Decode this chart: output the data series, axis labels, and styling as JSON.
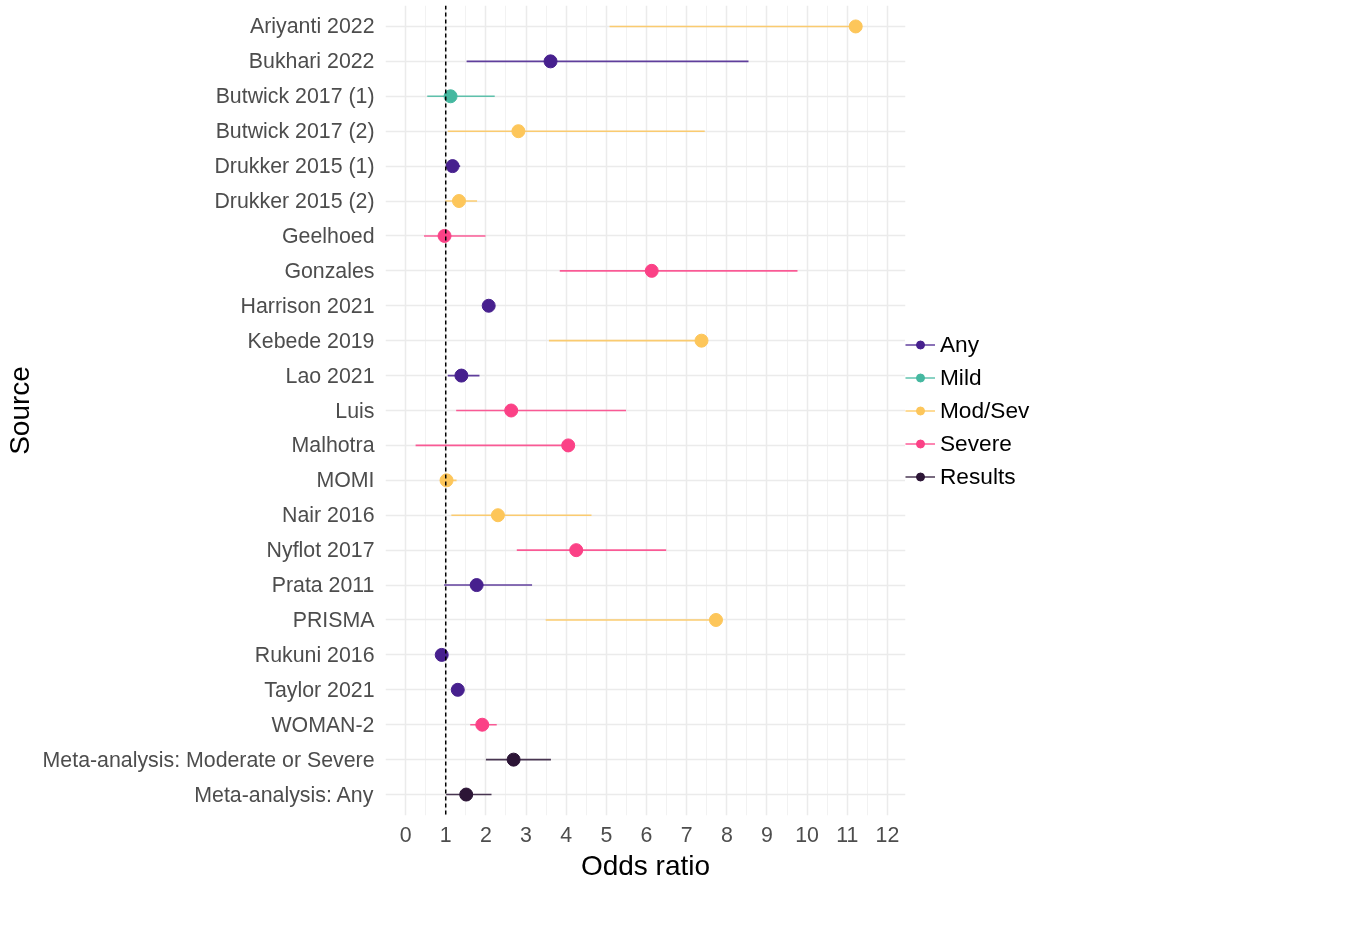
{
  "chart_data": {
    "type": "scatter",
    "orientation": "horizontal",
    "xlabel": "Odds ratio",
    "ylabel": "Source",
    "categories": [
      "Ariyanti 2022",
      "Bukhari 2022",
      "Butwick 2017 (1)",
      "Butwick 2017 (2)",
      "Drukker 2015 (1)",
      "Drukker 2015 (2)",
      "Geelhoed",
      "Gonzales",
      "Harrison 2021",
      "Kebede 2019",
      "Lao 2021",
      "Luis",
      "Malhotra",
      "MOMI",
      "Nair 2016",
      "Nyflot 2017",
      "Prata 2011",
      "PRISMA",
      "Rukuni 2016",
      "Taylor 2021",
      "WOMAN-2",
      "Meta-analysis: Moderate or Severe",
      "Meta-analysis: Any"
    ],
    "series": [
      {
        "name": "Any",
        "color": "#47208e",
        "values": [
          null,
          3.61,
          null,
          null,
          1.17,
          null,
          null,
          null,
          2.07,
          null,
          1.39,
          null,
          null,
          null,
          null,
          null,
          1.77,
          null,
          0.9,
          1.3,
          null,
          null,
          null
        ],
        "errors": [
          null,
          [
            1.52,
            8.54
          ],
          null,
          null,
          [
            1.05,
            1.36
          ],
          null,
          null,
          null,
          null,
          null,
          [
            1.05,
            1.84
          ],
          null,
          null,
          null,
          null,
          null,
          [
            0.96,
            3.15
          ],
          null,
          null,
          null,
          null,
          null,
          null
        ]
      },
      {
        "name": "Mild",
        "color": "#45b8a0",
        "values": [
          null,
          null,
          1.12,
          null,
          null,
          null,
          null,
          null,
          null,
          null,
          null,
          null,
          null,
          null,
          null,
          null,
          null,
          null,
          null,
          null,
          null,
          null,
          null
        ],
        "errors": [
          null,
          null,
          [
            0.54,
            2.22
          ],
          null,
          null,
          null,
          null,
          null,
          null,
          null,
          null,
          null,
          null,
          null,
          null,
          null,
          null,
          null,
          null,
          null,
          null,
          null,
          null
        ]
      },
      {
        "name": "Mod/Sev",
        "color": "#fdc65a",
        "values": [
          11.21,
          null,
          null,
          2.81,
          null,
          1.33,
          null,
          null,
          null,
          7.37,
          null,
          null,
          null,
          1.02,
          2.3,
          null,
          null,
          7.73,
          null,
          null,
          null,
          null,
          null
        ],
        "errors": [
          [
            5.08,
            11.21
          ],
          null,
          null,
          [
            1.05,
            7.45
          ],
          null,
          [
            0.99,
            1.78
          ],
          null,
          null,
          null,
          [
            3.57,
            7.37
          ],
          null,
          null,
          null,
          [
            0.89,
            1.27
          ],
          [
            1.14,
            4.63
          ],
          null,
          null,
          [
            3.49,
            7.73
          ],
          null,
          null,
          null,
          null,
          null
        ]
      },
      {
        "name": "Severe",
        "color": "#fb4186",
        "values": [
          null,
          null,
          null,
          null,
          null,
          null,
          0.97,
          6.13,
          null,
          null,
          null,
          2.63,
          4.05,
          null,
          null,
          4.25,
          null,
          null,
          null,
          null,
          1.91,
          null,
          null
        ],
        "errors": [
          null,
          null,
          null,
          null,
          null,
          null,
          [
            0.46,
            1.99
          ],
          [
            3.84,
            9.76
          ],
          null,
          null,
          null,
          [
            1.26,
            5.49
          ],
          [
            0.25,
            4.05
          ],
          null,
          null,
          [
            2.77,
            6.49
          ],
          null,
          null,
          null,
          null,
          [
            1.61,
            2.27
          ],
          null,
          null
        ]
      },
      {
        "name": "Results",
        "color": "#2c1536",
        "values": [
          null,
          null,
          null,
          null,
          null,
          null,
          null,
          null,
          null,
          null,
          null,
          null,
          null,
          null,
          null,
          null,
          null,
          null,
          null,
          null,
          null,
          2.69,
          1.51
        ],
        "errors": [
          null,
          null,
          null,
          null,
          null,
          null,
          null,
          null,
          null,
          null,
          null,
          null,
          null,
          null,
          null,
          null,
          null,
          null,
          null,
          null,
          null,
          [
            2.0,
            3.62
          ],
          [
            1.01,
            2.14
          ]
        ]
      }
    ],
    "xlim": [
      -0.5,
      12.45
    ],
    "xticks": [
      0,
      1,
      2,
      3,
      4,
      5,
      6,
      7,
      8,
      9,
      10,
      11,
      12
    ],
    "ref_lines": [
      {
        "axis": "x",
        "value": 1,
        "color": "#000000",
        "line_style": "dashed"
      }
    ],
    "grid": true,
    "legend": "right",
    "marker": "circle"
  }
}
